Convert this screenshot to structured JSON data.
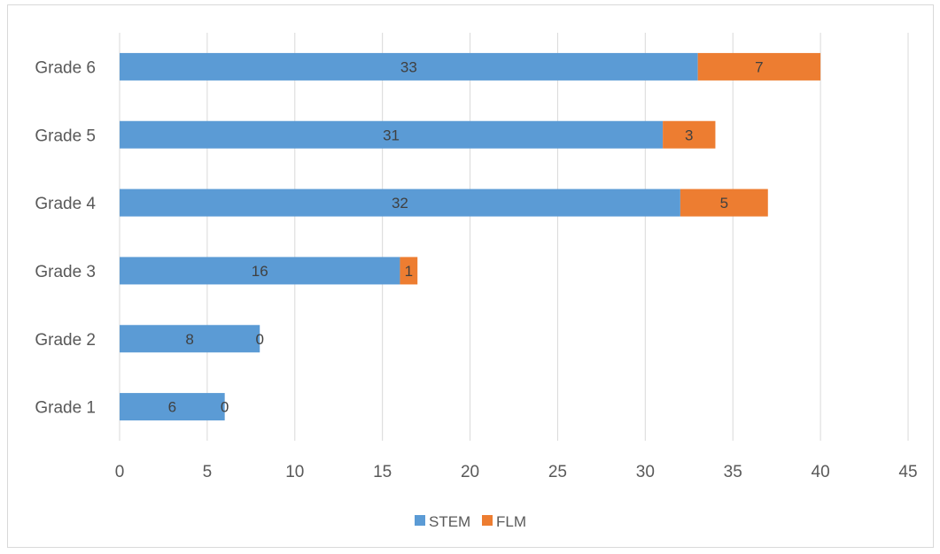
{
  "chart_data": {
    "type": "bar",
    "orientation": "horizontal",
    "stacked": true,
    "title": "",
    "xlabel": "",
    "ylabel": "",
    "categories": [
      "Grade 1",
      "Grade 2",
      "Grade 3",
      "Grade 4",
      "Grade 5",
      "Grade 6"
    ],
    "series": [
      {
        "name": "STEM",
        "values": [
          6,
          8,
          16,
          32,
          31,
          33
        ],
        "color": "#5b9bd5"
      },
      {
        "name": "FLM",
        "values": [
          0,
          0,
          1,
          5,
          3,
          7
        ],
        "color": "#ed7d31"
      }
    ],
    "xlim": [
      0,
      45
    ],
    "xticks": [
      0,
      5,
      10,
      15,
      20,
      25,
      30,
      35,
      40,
      45
    ],
    "grid": "vertical",
    "legend": "bottom",
    "data_labels": true
  }
}
